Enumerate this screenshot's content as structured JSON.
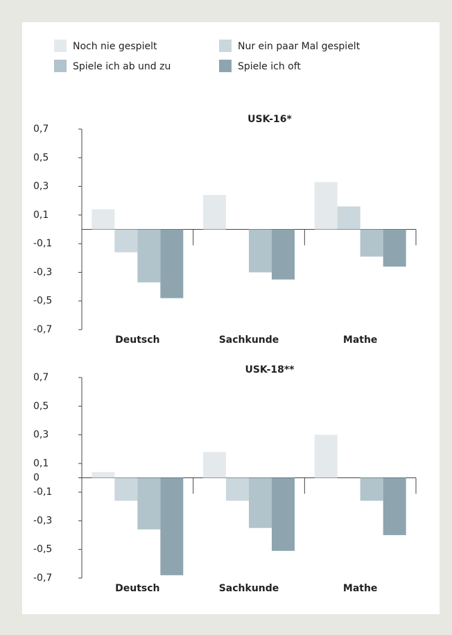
{
  "chart_data": [
    {
      "type": "bar",
      "title": "USK-16*",
      "categories": [
        "Deutsch",
        "Sachkunde",
        "Mathe"
      ],
      "series": [
        {
          "name": "Noch nie gespielt",
          "color": "#e4e9ec",
          "values": [
            0.14,
            0.24,
            0.33
          ]
        },
        {
          "name": "Nur ein paar Mal gespielt",
          "color": "#cad7dc",
          "values": [
            -0.16,
            null,
            0.16
          ]
        },
        {
          "name": "Spiele ich ab und zu",
          "color": "#b1c3cb",
          "values": [
            -0.37,
            -0.3,
            -0.19
          ]
        },
        {
          "name": "Spiele ich oft",
          "color": "#8ea5af",
          "values": [
            -0.48,
            -0.35,
            -0.26
          ]
        }
      ],
      "ylim": [
        -0.7,
        0.7
      ],
      "yticks": [
        {
          "value": 0.7,
          "label": "0,7"
        },
        {
          "value": 0.5,
          "label": "0,5"
        },
        {
          "value": 0.3,
          "label": "0,3"
        },
        {
          "value": 0.1,
          "label": "0,1"
        },
        {
          "value": -0.1,
          "label": "-0,1"
        },
        {
          "value": -0.3,
          "label": "-0,3"
        },
        {
          "value": -0.5,
          "label": "-0,5"
        },
        {
          "value": -0.7,
          "label": "-0,7"
        }
      ]
    },
    {
      "type": "bar",
      "title": "USK-18**",
      "categories": [
        "Deutsch",
        "Sachkunde",
        "Mathe"
      ],
      "series": [
        {
          "name": "Noch nie gespielt",
          "color": "#e4e9ec",
          "values": [
            0.04,
            0.18,
            0.3
          ]
        },
        {
          "name": "Nur ein paar Mal gespielt",
          "color": "#cad7dc",
          "values": [
            -0.16,
            -0.16,
            null
          ]
        },
        {
          "name": "Spiele ich ab und zu",
          "color": "#b1c3cb",
          "values": [
            -0.36,
            -0.35,
            -0.16
          ]
        },
        {
          "name": "Spiele ich oft",
          "color": "#8ea5af",
          "values": [
            -0.68,
            -0.51,
            -0.4
          ]
        }
      ],
      "ylim": [
        -0.7,
        0.7
      ],
      "yticks": [
        {
          "value": 0.7,
          "label": "0,7"
        },
        {
          "value": 0.5,
          "label": "0,5"
        },
        {
          "value": 0.3,
          "label": "0,3"
        },
        {
          "value": 0.1,
          "label": "0,1"
        },
        0,
        {
          "value": -0.1,
          "label": "-0,1"
        },
        {
          "value": -0.3,
          "label": "-0,3"
        },
        {
          "value": -0.5,
          "label": "-0,5"
        },
        {
          "value": -0.7,
          "label": "-0,7"
        }
      ]
    }
  ]
}
